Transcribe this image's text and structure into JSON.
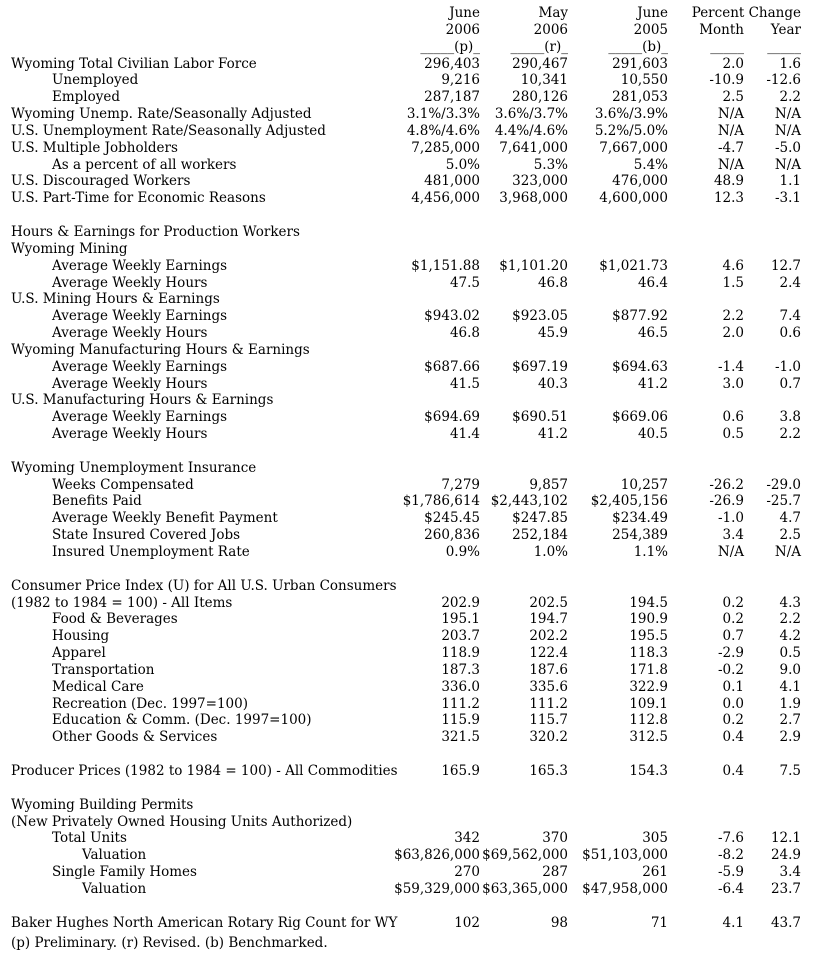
{
  "header": {
    "c1": {
      "month": "June",
      "year": "2006",
      "rule": "_____(p)_"
    },
    "c2": {
      "month": "May",
      "year": "2006",
      "rule": "_____(r)_"
    },
    "c3": {
      "month": "June",
      "year": "2005",
      "rule": "_____(b)_"
    },
    "pct": {
      "title": "Percent Change",
      "month": "Month",
      "year": "Year",
      "month_rule": "_____",
      "year_rule": "_____"
    }
  },
  "rows": [
    {
      "label": "Wyoming Total Civilian Labor Force",
      "indent": 0,
      "c1": "296,403",
      "c2": "290,467",
      "c3": "291,603",
      "c4": "2.0",
      "c5": "1.6"
    },
    {
      "label": "Unemployed",
      "indent": 1,
      "c1": "9,216",
      "c2": "10,341",
      "c3": "10,550",
      "c4": "-10.9",
      "c5": "-12.6"
    },
    {
      "label": "Employed",
      "indent": 1,
      "c1": "287,187",
      "c2": "280,126",
      "c3": "281,053",
      "c4": "2.5",
      "c5": "2.2"
    },
    {
      "label": "Wyoming Unemp. Rate/Seasonally Adjusted",
      "indent": 0,
      "c1": "3.1%/3.3%",
      "c2": "3.6%/3.7%",
      "c3": "3.6%/3.9%",
      "c4": "N/A",
      "c5": "N/A"
    },
    {
      "label": "U.S. Unemployment Rate/Seasonally Adjusted",
      "indent": 0,
      "c1": "4.8%/4.6%",
      "c2": "4.4%/4.6%",
      "c3": "5.2%/5.0%",
      "c4": "N/A",
      "c5": "N/A"
    },
    {
      "label": "U.S. Multiple Jobholders",
      "indent": 0,
      "c1": "7,285,000",
      "c2": "7,641,000",
      "c3": "7,667,000",
      "c4": "-4.7",
      "c5": "-5.0"
    },
    {
      "label": "As a percent of all workers",
      "indent": 1,
      "c1": "5.0%",
      "c2": "5.3%",
      "c3": "5.4%",
      "c4": "N/A",
      "c5": "N/A"
    },
    {
      "label": "U.S. Discouraged Workers",
      "indent": 0,
      "c1": "481,000",
      "c2": "323,000",
      "c3": "476,000",
      "c4": "48.9",
      "c5": "1.1"
    },
    {
      "label": "U.S. Part-Time for Economic Reasons",
      "indent": 0,
      "c1": "4,456,000",
      "c2": "3,968,000",
      "c3": "4,600,000",
      "c4": "12.3",
      "c5": "-3.1"
    },
    {
      "blank": true
    },
    {
      "label": "Hours & Earnings for Production Workers",
      "indent": 0
    },
    {
      "label": "Wyoming Mining",
      "indent": 0
    },
    {
      "label": "Average Weekly Earnings",
      "indent": 1,
      "c1": "$1,151.88",
      "c2": "$1,101.20",
      "c3": "$1,021.73",
      "c4": "4.6",
      "c5": "12.7"
    },
    {
      "label": "Average Weekly Hours",
      "indent": 1,
      "c1": "47.5",
      "c2": "46.8",
      "c3": "46.4",
      "c4": "1.5",
      "c5": "2.4"
    },
    {
      "label": "U.S. Mining Hours & Earnings",
      "indent": 0
    },
    {
      "label": "Average Weekly Earnings",
      "indent": 1,
      "c1": "$943.02",
      "c2": "$923.05",
      "c3": "$877.92",
      "c4": "2.2",
      "c5": "7.4"
    },
    {
      "label": "Average Weekly Hours",
      "indent": 1,
      "c1": "46.8",
      "c2": "45.9",
      "c3": "46.5",
      "c4": "2.0",
      "c5": "0.6"
    },
    {
      "label": "Wyoming Manufacturing Hours & Earnings",
      "indent": 0
    },
    {
      "label": "Average Weekly Earnings",
      "indent": 1,
      "c1": "$687.66",
      "c2": "$697.19",
      "c3": "$694.63",
      "c4": "-1.4",
      "c5": "-1.0"
    },
    {
      "label": "Average Weekly Hours",
      "indent": 1,
      "c1": "41.5",
      "c2": "40.3",
      "c3": "41.2",
      "c4": "3.0",
      "c5": "0.7"
    },
    {
      "label": "U.S. Manufacturing Hours & Earnings",
      "indent": 0
    },
    {
      "label": "Average Weekly Earnings",
      "indent": 1,
      "c1": "$694.69",
      "c2": "$690.51",
      "c3": "$669.06",
      "c4": "0.6",
      "c5": "3.8"
    },
    {
      "label": "Average Weekly Hours",
      "indent": 1,
      "c1": "41.4",
      "c2": "41.2",
      "c3": "40.5",
      "c4": "0.5",
      "c5": "2.2"
    },
    {
      "blank": true
    },
    {
      "label": "Wyoming Unemployment Insurance",
      "indent": 0
    },
    {
      "label": "Weeks Compensated",
      "indent": 1,
      "c1": "7,279",
      "c2": "9,857",
      "c3": "10,257",
      "c4": "-26.2",
      "c5": "-29.0"
    },
    {
      "label": "Benefits Paid",
      "indent": 1,
      "c1": "$1,786,614",
      "c2": "$2,443,102",
      "c3": "$2,405,156",
      "c4": "-26.9",
      "c5": "-25.7"
    },
    {
      "label": "Average Weekly Benefit Payment",
      "indent": 1,
      "c1": "$245.45",
      "c2": "$247.85",
      "c3": "$234.49",
      "c4": "-1.0",
      "c5": "4.7"
    },
    {
      "label": "State Insured Covered Jobs",
      "indent": 1,
      "c1": "260,836",
      "c2": "252,184",
      "c3": "254,389",
      "c4": "3.4",
      "c5": "2.5"
    },
    {
      "label": "Insured Unemployment Rate",
      "indent": 1,
      "c1": "0.9%",
      "c2": "1.0%",
      "c3": "1.1%",
      "c4": "N/A",
      "c5": "N/A"
    },
    {
      "blank": true
    },
    {
      "label": "Consumer Price Index (U) for All U.S. Urban Consumers",
      "indent": 0
    },
    {
      "label": "(1982 to 1984 = 100) - All Items",
      "indent": 0,
      "c1": "202.9",
      "c2": "202.5",
      "c3": "194.5",
      "c4": "0.2",
      "c5": "4.3"
    },
    {
      "label": "Food & Beverages",
      "indent": 1,
      "c1": "195.1",
      "c2": "194.7",
      "c3": "190.9",
      "c4": "0.2",
      "c5": "2.2"
    },
    {
      "label": "Housing",
      "indent": 1,
      "c1": "203.7",
      "c2": "202.2",
      "c3": "195.5",
      "c4": "0.7",
      "c5": "4.2"
    },
    {
      "label": "Apparel",
      "indent": 1,
      "c1": "118.9",
      "c2": "122.4",
      "c3": "118.3",
      "c4": "-2.9",
      "c5": "0.5"
    },
    {
      "label": "Transportation",
      "indent": 1,
      "c1": "187.3",
      "c2": "187.6",
      "c3": "171.8",
      "c4": "-0.2",
      "c5": "9.0"
    },
    {
      "label": "Medical Care",
      "indent": 1,
      "c1": "336.0",
      "c2": "335.6",
      "c3": "322.9",
      "c4": "0.1",
      "c5": "4.1"
    },
    {
      "label": "Recreation (Dec. 1997=100)",
      "indent": 1,
      "c1": "111.2",
      "c2": "111.2",
      "c3": "109.1",
      "c4": "0.0",
      "c5": "1.9"
    },
    {
      "label": "Education & Comm. (Dec. 1997=100)",
      "indent": 1,
      "c1": "115.9",
      "c2": "115.7",
      "c3": "112.8",
      "c4": "0.2",
      "c5": "2.7"
    },
    {
      "label": "Other Goods & Services",
      "indent": 1,
      "c1": "321.5",
      "c2": "320.2",
      "c3": "312.5",
      "c4": "0.4",
      "c5": "2.9"
    },
    {
      "blank": true
    },
    {
      "label": "Producer Prices (1982 to 1984 = 100) - All Commodities",
      "indent": 0,
      "c1": "165.9",
      "c2": "165.3",
      "c3": "154.3",
      "c4": "0.4",
      "c5": "7.5"
    },
    {
      "blank": true
    },
    {
      "label": "Wyoming Building Permits",
      "indent": 0
    },
    {
      "label": "(New Privately Owned Housing Units Authorized)",
      "indent": 0
    },
    {
      "label": "Total Units",
      "indent": 1,
      "c1": "342",
      "c2": "370",
      "c3": "305",
      "c4": "-7.6",
      "c5": "12.1"
    },
    {
      "label": "Valuation",
      "indent": 2,
      "c1": "$63,826,000",
      "c2": "$69,562,000",
      "c3": "$51,103,000",
      "c4": "-8.2",
      "c5": "24.9"
    },
    {
      "label": "Single Family Homes",
      "indent": 1,
      "c1": "270",
      "c2": "287",
      "c3": "261",
      "c4": "-5.9",
      "c5": "3.4"
    },
    {
      "label": "Valuation",
      "indent": 2,
      "c1": "$59,329,000",
      "c2": "$63,365,000",
      "c3": "$47,958,000",
      "c4": "-6.4",
      "c5": "23.7"
    },
    {
      "blank": true
    },
    {
      "label": "Baker Hughes North American Rotary Rig Count for WY",
      "indent": 0,
      "c1": "102",
      "c2": "98",
      "c3": "71",
      "c4": "4.1",
      "c5": "43.7"
    }
  ],
  "footnote": "(p) Preliminary. (r) Revised. (b) Benchmarked."
}
